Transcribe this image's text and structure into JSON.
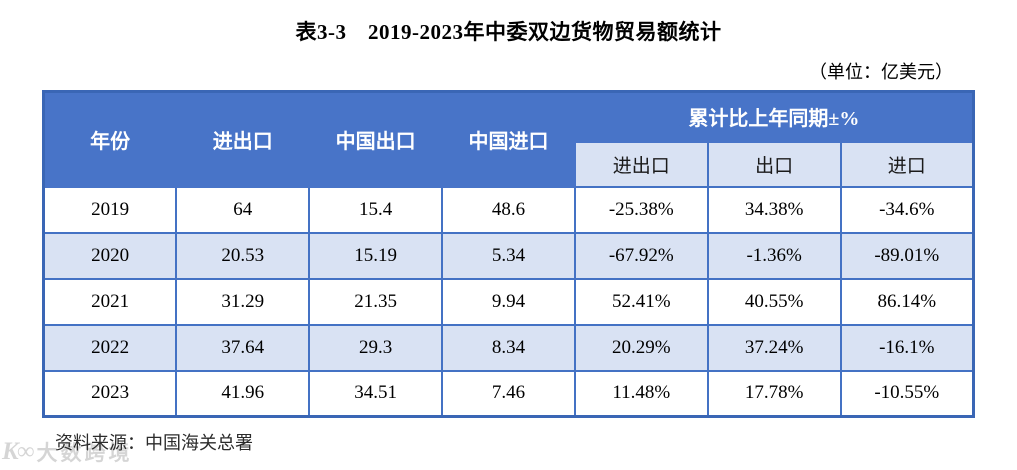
{
  "page": {
    "title": "表3-3　2019-2023年中委双边货物贸易额统计",
    "unit_label": "（单位：亿美元）",
    "source_label": "资料来源：中国海关总署",
    "watermark_logo": "K∞",
    "watermark_text": "大数跨境"
  },
  "colors": {
    "header_bg": "#4874c8",
    "subheader_bg": "#d9e2f3",
    "alt_row_bg": "#d9e2f3",
    "border": "#4472c4",
    "outer_border": "#3a66b5"
  },
  "chart_data": {
    "type": "table",
    "title": "2019-2023年中委双边货物贸易额统计",
    "unit": "亿美元",
    "columns": [
      "年份",
      "进出口",
      "中国出口",
      "中国进口",
      "累计比上年同期±% 进出口",
      "累计比上年同期±% 出口",
      "累计比上年同期±% 进口"
    ],
    "rows": [
      [
        "2019",
        "64",
        "15.4",
        "48.6",
        "-25.38%",
        "34.38%",
        "-34.6%"
      ],
      [
        "2020",
        "20.53",
        "15.19",
        "5.34",
        "-67.92%",
        "-1.36%",
        "-89.01%"
      ],
      [
        "2021",
        "31.29",
        "21.35",
        "9.94",
        "52.41%",
        "40.55%",
        "86.14%"
      ],
      [
        "2022",
        "37.64",
        "29.3",
        "8.34",
        "20.29%",
        "37.24%",
        "-16.1%"
      ],
      [
        "2023",
        "41.96",
        "34.51",
        "7.46",
        "11.48%",
        "17.78%",
        "-10.55%"
      ]
    ]
  },
  "table": {
    "columns": [
      "年份",
      "进出口",
      "中国出口",
      "中国进口"
    ],
    "group_header": "累计比上年同期±%",
    "sub_columns": [
      "进出口",
      "出口",
      "进口"
    ],
    "rows": [
      [
        "2019",
        "64",
        "15.4",
        "48.6",
        "-25.38%",
        "34.38%",
        "-34.6%"
      ],
      [
        "2020",
        "20.53",
        "15.19",
        "5.34",
        "-67.92%",
        "-1.36%",
        "-89.01%"
      ],
      [
        "2021",
        "31.29",
        "21.35",
        "9.94",
        "52.41%",
        "40.55%",
        "86.14%"
      ],
      [
        "2022",
        "37.64",
        "29.3",
        "8.34",
        "20.29%",
        "37.24%",
        "-16.1%"
      ],
      [
        "2023",
        "41.96",
        "34.51",
        "7.46",
        "11.48%",
        "17.78%",
        "-10.55%"
      ]
    ]
  }
}
